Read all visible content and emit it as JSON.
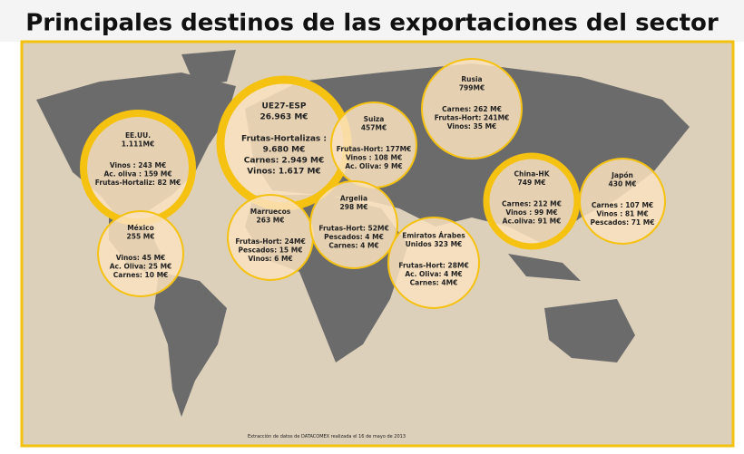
{
  "header": {
    "title": "Principales destinos de las exportaciones del sector"
  },
  "bubbles": [
    {
      "name": "EE.UU.",
      "total": "1.111M€",
      "lines": [
        "Vinos : 243 M€",
        "Ac. oliva : 159 M€",
        "Frutas-Hortaliz: 82 M€"
      ]
    },
    {
      "name": "UE27-ESP",
      "total": "26.963 M€",
      "lines": [
        "Frutas-Hortalizas :",
        "9.680 M€",
        "Carnes: 2.949 M€",
        "Vinos: 1.617 M€"
      ]
    },
    {
      "name": "Suiza",
      "total": "457M€",
      "lines": [
        "Frutas-Hort: 177M€",
        "Vinos : 108 M€",
        "Ac. Oliva: 9 M€"
      ]
    },
    {
      "name": "Rusia",
      "total": "799M€",
      "lines": [
        "Carnes: 262 M€",
        "Frutas-Hort: 241M€",
        "Vinos: 35 M€"
      ]
    },
    {
      "name": "China-HK",
      "total": "749 M€",
      "lines": [
        "Carnes: 212 M€",
        "Vinos : 99 M€",
        "Ac.oliva: 91 M€"
      ]
    },
    {
      "name": "Japón",
      "total": "430 M€",
      "lines": [
        "Carnes : 107 M€",
        "Vinos : 81 M€",
        "Pescados: 71 M€"
      ]
    },
    {
      "name": "México",
      "total": "255 M€",
      "lines": [
        "Vinos: 45 M€",
        "Ac. Oliva: 25 M€",
        "Carnes: 10 M€"
      ]
    },
    {
      "name": "Marruecos",
      "total": "263 M€",
      "lines": [
        "Frutas-Hort: 24M€",
        "Pescados: 15 M€",
        "Vinos: 6 M€"
      ]
    },
    {
      "name": "Argelia",
      "total": "298 M€",
      "lines": [
        "Frutas-Hort: 52M€",
        "Pescados: 4 M€",
        "Carnes: 4 M€"
      ]
    },
    {
      "name": "Emiratos Árabes",
      "total": "Unidos 323 M€",
      "lines": [
        "Frutas-Hort: 28M€",
        "Ac. Oliva: 4 M€",
        "Carnes: 4M€"
      ]
    }
  ],
  "footer": {
    "note": "Extracción de datos de DATACOMEX realizada el 16 de mayo de 2013"
  }
}
